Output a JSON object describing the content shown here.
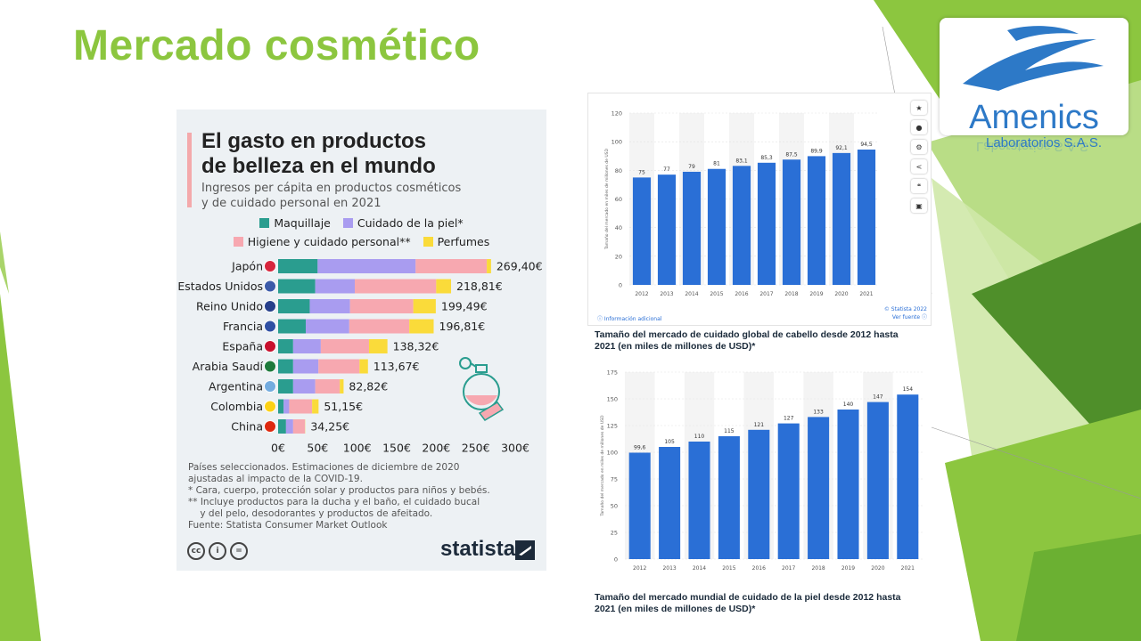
{
  "slide": {
    "title": "Mercado cosmético"
  },
  "logo": {
    "name": "Amenics",
    "subtitle": "Laboratorios S.A.S.",
    "color": "#2d79c7"
  },
  "infographic": {
    "title_line1": "El gasto en productos",
    "title_line2": "de belleza en el mundo",
    "subtitle_line1": "Ingresos per cápita en productos cosméticos",
    "subtitle_line2": "y de cuidado personal en 2021",
    "notes": [
      "Países seleccionados. Estimaciones de diciembre de 2020",
      "ajustadas al impacto de la COVID-19.",
      "*   Cara, cuerpo, protección solar y productos para niños y bebés.",
      "** Incluye productos para la ducha y el baño, el cuidado bucal",
      "    y del pelo, desodorantes y productos de afeitado.",
      "Fuente: Statista Consumer Market Outlook"
    ],
    "brand": "statista",
    "license_icons": [
      "cc",
      "i",
      "="
    ]
  },
  "chart_data": [
    {
      "type": "bar",
      "orientation": "horizontal",
      "stacked": true,
      "categories": [
        "Japón",
        "Estados Unidos",
        "Reino Unido",
        "Francia",
        "España",
        "Arabia Saudí",
        "Argentina",
        "Colombia",
        "China"
      ],
      "value_labels": [
        "269,40€",
        "218,81€",
        "199,49€",
        "196,81€",
        "138,32€",
        "113,67€",
        "82,82€",
        "51,15€",
        "34,25€"
      ],
      "series": [
        {
          "name": "Maquillaje",
          "color": "#2a9d8f",
          "values": [
            50,
            47,
            40,
            35,
            19,
            19,
            19,
            7,
            10
          ]
        },
        {
          "name": "Cuidado de la piel*",
          "color": "#a99cf0",
          "values": [
            124,
            50,
            51,
            55,
            35,
            32,
            28,
            7,
            9
          ]
        },
        {
          "name": "Higiene y cuidado personal**",
          "color": "#f7a8b0",
          "values": [
            90,
            103,
            80,
            76,
            61,
            52,
            31,
            29,
            15
          ]
        },
        {
          "name": "Perfumes",
          "color": "#fadb3a",
          "values": [
            5.4,
            18.81,
            28.49,
            30.81,
            23.32,
            10.67,
            4.82,
            8.15,
            0.25
          ]
        }
      ],
      "xticks": [
        "0€",
        "50€",
        "100€",
        "150€",
        "200€",
        "250€",
        "300€"
      ],
      "xlim": [
        0,
        300
      ]
    },
    {
      "type": "bar",
      "categories": [
        "2012",
        "2013",
        "2014",
        "2015",
        "2016",
        "2017",
        "2018",
        "2019",
        "2020",
        "2021"
      ],
      "values": [
        75,
        77,
        79,
        81,
        83.1,
        85.3,
        87.5,
        89.9,
        92.1,
        94.5
      ],
      "labels": [
        "75",
        "77",
        "79",
        "81",
        "83,1",
        "85,3",
        "87,5",
        "89,9",
        "92,1",
        "94,5"
      ],
      "yticks": [
        "0",
        "20",
        "40",
        "60",
        "80",
        "100",
        "120"
      ],
      "ylim": [
        0,
        120
      ],
      "ylabel": "Tamaño del mercado en miles de millones de USD",
      "bar_color": "#2a6fd6",
      "footer_left": "Información adicional",
      "footer_right_line1": "© Statista 2022",
      "footer_right_line2": "Ver fuente",
      "caption_line1": "Tamaño del mercado de cuidado global de cabello desde 2012 hasta",
      "caption_line2": "2021 (en miles de millones de USD)*"
    },
    {
      "type": "bar",
      "categories": [
        "2012",
        "2013",
        "2014",
        "2015",
        "2016",
        "2017",
        "2018",
        "2019",
        "2020",
        "2021"
      ],
      "values": [
        99.6,
        105,
        110,
        115,
        121,
        127,
        133,
        140,
        147,
        154
      ],
      "labels": [
        "99,6",
        "105",
        "110",
        "115",
        "121",
        "127",
        "133",
        "140",
        "147",
        "154"
      ],
      "yticks": [
        "0",
        "25",
        "50",
        "75",
        "100",
        "125",
        "150",
        "175"
      ],
      "ylim": [
        0,
        175
      ],
      "ylabel": "Tamaño del mercado en miles de millones de USD",
      "bar_color": "#2a6fd6",
      "caption_line1": "Tamaño del mercado mundial de cuidado de la piel desde 2012 hasta",
      "caption_line2": "2021 (en miles de millones de USD)*"
    }
  ],
  "toolbar_icons": [
    "star-icon",
    "bell-icon",
    "gear-icon",
    "share-icon",
    "quote-icon",
    "print-icon"
  ],
  "theme_colors": {
    "accent_green": "#8cc63f",
    "dark_green": "#4f8f2a",
    "light_green": "#cfe8a8"
  }
}
